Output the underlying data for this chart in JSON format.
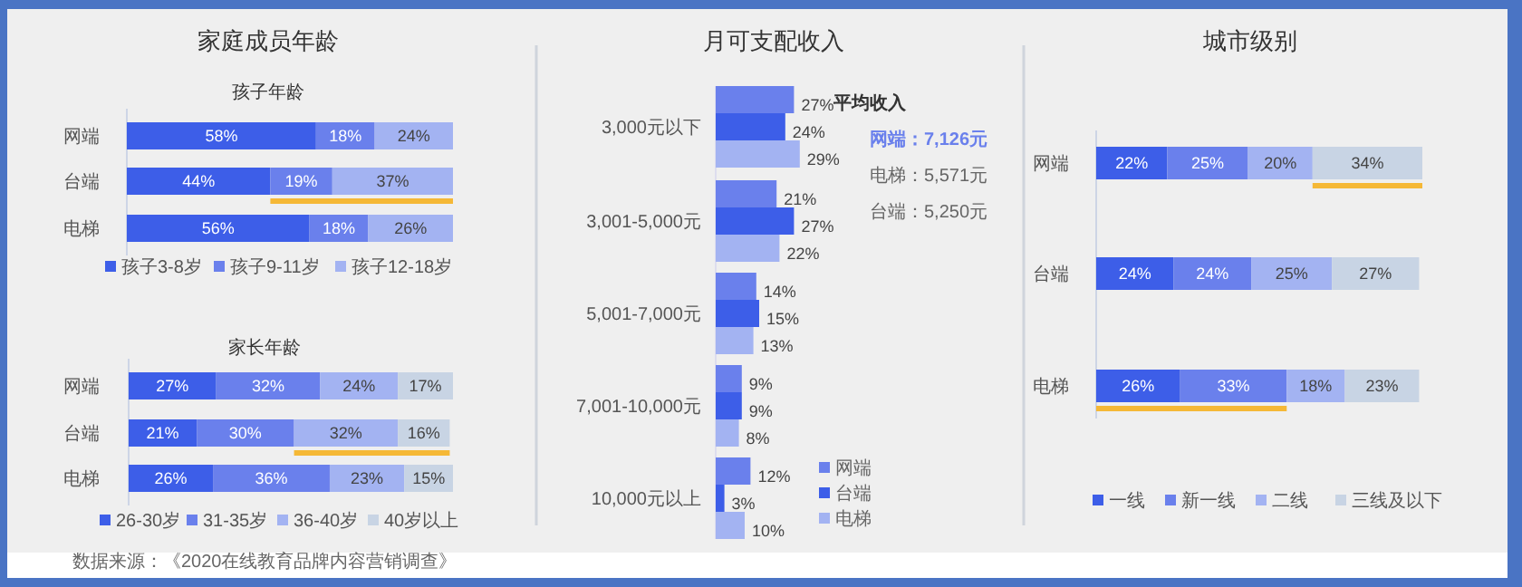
{
  "chart_data": [
    {
      "type": "bar",
      "title": "家庭成员年龄",
      "subtitle": "孩子年龄",
      "orientation": "horizontal",
      "stacked": true,
      "legend": "bottom",
      "categories": [
        "网端",
        "台端",
        "电梯"
      ],
      "series": [
        {
          "name": "孩子3-8岁",
          "color": "#3d5ee8",
          "values": [
            58,
            44,
            56
          ],
          "value_labels": [
            "58%",
            "44%",
            "56%"
          ]
        },
        {
          "name": "孩子9-11岁",
          "color": "#6a80ec",
          "values": [
            18,
            19,
            18
          ],
          "value_labels": [
            "18%",
            "19%",
            "18%"
          ]
        },
        {
          "name": "孩子12-18岁",
          "color": "#a3b3f2",
          "values": [
            24,
            37,
            26
          ],
          "value_labels": [
            "24%",
            "37%",
            "26%"
          ]
        }
      ]
    },
    {
      "type": "bar",
      "title": "家长年龄",
      "orientation": "horizontal",
      "stacked": true,
      "legend": "bottom",
      "categories": [
        "网端",
        "台端",
        "电梯"
      ],
      "annotations": [
        "数据来源：《2020在线教育品牌内容营销调查》"
      ],
      "series": [
        {
          "name": "26-30岁",
          "color": "#3d5ee8",
          "values": [
            27,
            21,
            26
          ],
          "value_labels": [
            "27%",
            "21%",
            "26%"
          ]
        },
        {
          "name": "31-35岁",
          "color": "#6a80ec",
          "values": [
            32,
            30,
            36
          ],
          "value_labels": [
            "32%",
            "30%",
            "36%"
          ]
        },
        {
          "name": "36-40岁",
          "color": "#a3b3f2",
          "values": [
            24,
            32,
            23
          ],
          "value_labels": [
            "24%",
            "32%",
            "23%"
          ]
        },
        {
          "name": "40岁以上",
          "color": "#c8d4e4",
          "values": [
            17,
            16,
            15
          ],
          "value_labels": [
            "17%",
            "16%",
            "15%"
          ]
        }
      ]
    },
    {
      "type": "bar",
      "title": "月可支配收入",
      "orientation": "horizontal",
      "legend": "bottom right",
      "categories": [
        "3,000元以下",
        "3,001-5,000元",
        "5,001-7,000元",
        "7,001-10,000元",
        "10,000元以上"
      ],
      "annotations": [
        "平均收入",
        "网端：7,126元",
        "电梯：5,571元",
        "台端：5,250元"
      ],
      "series": [
        {
          "name": "网端",
          "color": "#6a80ec",
          "values": [
            27,
            21,
            14,
            9,
            12
          ],
          "value_labels": [
            "27%",
            "21%",
            "14%",
            "9%",
            "12%"
          ]
        },
        {
          "name": "台端",
          "color": "#3d5ee8",
          "values": [
            24,
            27,
            15,
            9,
            3
          ],
          "value_labels": [
            "24%",
            "27%",
            "15%",
            "9%",
            "3%"
          ]
        },
        {
          "name": "电梯",
          "color": "#a3b3f2",
          "values": [
            29,
            22,
            13,
            8,
            10
          ],
          "value_labels": [
            "29%",
            "22%",
            "13%",
            "8%",
            "10%"
          ]
        }
      ]
    },
    {
      "type": "bar",
      "title": "城市级别",
      "orientation": "horizontal",
      "stacked": true,
      "legend": "bottom",
      "categories": [
        "网端",
        "台端",
        "电梯"
      ],
      "series": [
        {
          "name": "一线",
          "color": "#3d5ee8",
          "values": [
            22,
            24,
            26
          ],
          "value_labels": [
            "22%",
            "24%",
            "26%"
          ]
        },
        {
          "name": "新一线",
          "color": "#6a80ec",
          "values": [
            25,
            24,
            33
          ],
          "value_labels": [
            "25%",
            "24%",
            "33%"
          ]
        },
        {
          "name": "二线",
          "color": "#a3b3f2",
          "values": [
            20,
            25,
            18
          ],
          "value_labels": [
            "20%",
            "25%",
            "18%"
          ]
        },
        {
          "name": "三线及以下",
          "color": "#c8d4e4",
          "values": [
            34,
            27,
            23
          ],
          "value_labels": [
            "34%",
            "27%",
            "23%"
          ]
        }
      ]
    }
  ]
}
